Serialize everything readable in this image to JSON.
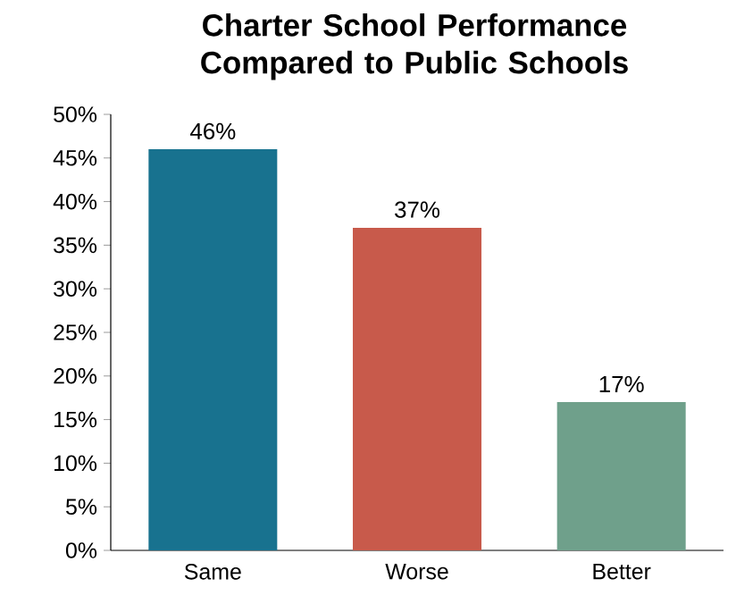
{
  "chart_data": {
    "type": "bar",
    "title": "Charter School Performance Compared to Public Schools",
    "categories": [
      "Same",
      "Worse",
      "Better"
    ],
    "values": [
      46,
      37,
      17
    ],
    "colors": [
      "#18728f",
      "#c85a4b",
      "#6fa08b"
    ],
    "value_labels": [
      "46%",
      "37%",
      "17%"
    ],
    "ylim": [
      0,
      50
    ],
    "yticks": [
      {
        "value": 0,
        "label": "0%"
      },
      {
        "value": 5,
        "label": "5%"
      },
      {
        "value": 10,
        "label": "10%"
      },
      {
        "value": 15,
        "label": "15%"
      },
      {
        "value": 20,
        "label": "20%"
      },
      {
        "value": 25,
        "label": "25%"
      },
      {
        "value": 30,
        "label": "30%"
      },
      {
        "value": 35,
        "label": "35%"
      },
      {
        "value": 40,
        "label": "40%"
      },
      {
        "value": 45,
        "label": "45%"
      },
      {
        "value": 50,
        "label": "50%"
      }
    ],
    "grid": false
  }
}
